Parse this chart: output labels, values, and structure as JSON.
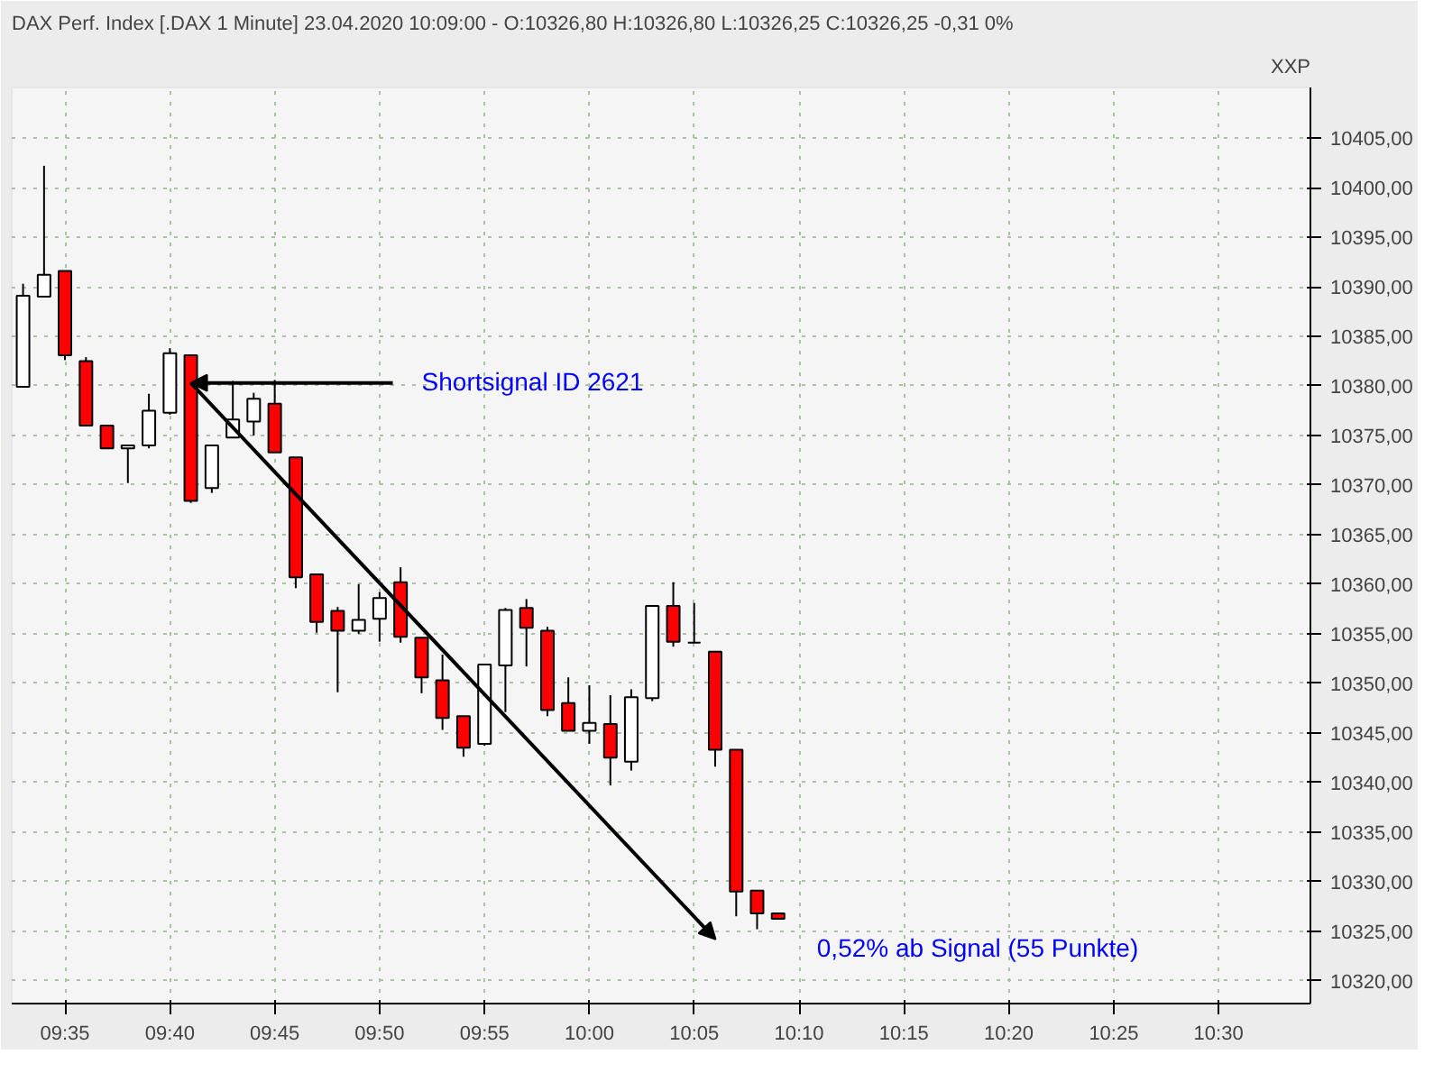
{
  "chart_data": {
    "type": "candlestick",
    "title": "DAX Perf. Index [.DAX  1 Minute] 23.04.2020 10:09:00 - O:10326,80 H:10326,80 L:10326,25 C:10326,25 -0,31 0%",
    "ylabel": "XXP",
    "x": [
      9.55,
      9.5667,
      9.5833,
      9.6,
      9.6167,
      9.6333,
      9.65,
      9.6667,
      9.6833,
      9.7,
      9.7167,
      9.7333,
      9.75,
      9.7667,
      9.7833,
      9.8,
      9.8167,
      9.8333,
      9.85,
      9.8667,
      9.8833,
      9.9,
      9.9167,
      9.9333,
      9.95,
      9.9667,
      9.9833,
      10.0,
      10.0167,
      10.0333,
      10.05,
      10.0667,
      10.0833,
      10.1,
      10.1167,
      10.1333,
      10.15
    ],
    "ohlc": [
      [
        10379.9,
        10390.3,
        10379.9,
        10389.1
      ],
      [
        10389.0,
        10402.2,
        10389.0,
        10391.2
      ],
      [
        10391.6,
        10391.6,
        10382.6,
        10383.1
      ],
      [
        10382.5,
        10382.9,
        10376.0,
        10376.0
      ],
      [
        10376.0,
        10376.0,
        10373.7,
        10373.7
      ],
      [
        10373.7,
        10374.0,
        10370.2,
        10374.0
      ],
      [
        10374.0,
        10379.2,
        10373.7,
        10377.5
      ],
      [
        10377.3,
        10383.8,
        10377.1,
        10383.3
      ],
      [
        10383.1,
        10383.1,
        10368.2,
        10368.4
      ],
      [
        10369.7,
        10374.0,
        10369.2,
        10374.0
      ],
      [
        10374.8,
        10380.5,
        10374.8,
        10376.6
      ],
      [
        10376.4,
        10379.3,
        10375.0,
        10378.7
      ],
      [
        10378.2,
        10380.6,
        10373.3,
        10373.3
      ],
      [
        10372.8,
        10372.8,
        10359.6,
        10360.7
      ],
      [
        10361.0,
        10361.0,
        10355.1,
        10356.2
      ],
      [
        10357.3,
        10357.7,
        10349.1,
        10355.3
      ],
      [
        10355.3,
        10360.0,
        10355.0,
        10356.4
      ],
      [
        10356.5,
        10359.2,
        10354.2,
        10358.6
      ],
      [
        10360.2,
        10361.7,
        10354.1,
        10354.7
      ],
      [
        10354.6,
        10354.6,
        10349.0,
        10350.6
      ],
      [
        10350.3,
        10352.9,
        10345.3,
        10346.5
      ],
      [
        10346.7,
        10346.7,
        10342.6,
        10343.5
      ],
      [
        10343.9,
        10351.9,
        10343.7,
        10351.9
      ],
      [
        10351.8,
        10357.6,
        10347.1,
        10357.4
      ],
      [
        10357.6,
        10358.5,
        10351.7,
        10355.6
      ],
      [
        10355.3,
        10355.7,
        10346.7,
        10347.3
      ],
      [
        10348.0,
        10350.6,
        10345.2,
        10345.2
      ],
      [
        10345.2,
        10349.8,
        10343.9,
        10346.0
      ],
      [
        10345.9,
        10348.8,
        10339.7,
        10342.5
      ],
      [
        10342.1,
        10349.4,
        10341.2,
        10348.6
      ],
      [
        10348.5,
        10357.8,
        10348.2,
        10357.8
      ],
      [
        10357.8,
        10360.2,
        10353.7,
        10354.2
      ],
      [
        10354.1,
        10358.1,
        10354.1,
        10354.1
      ],
      [
        10353.2,
        10353.2,
        10341.6,
        10343.3
      ],
      [
        10343.3,
        10343.3,
        10326.5,
        10329.0
      ],
      [
        10329.1,
        10329.1,
        10325.2,
        10326.8
      ],
      [
        10326.8,
        10326.8,
        10326.25,
        10326.25
      ]
    ],
    "colors": [
      "#ffffff",
      "#ffffff",
      "#ff0000",
      "#ff0000",
      "#ff0000",
      "#ffffff",
      "#ffffff",
      "#ffffff",
      "#ff0000",
      "#ffffff",
      "#ffffff",
      "#ffffff",
      "#ff0000",
      "#ff0000",
      "#ff0000",
      "#ff0000",
      "#ffffff",
      "#ffffff",
      "#ff0000",
      "#ff0000",
      "#ff0000",
      "#ff0000",
      "#ffffff",
      "#ffffff",
      "#ff0000",
      "#ff0000",
      "#ff0000",
      "#ffffff",
      "#ff0000",
      "#ffffff",
      "#ffffff",
      "#ff0000",
      "#000000",
      "#ff0000",
      "#ff0000",
      "#ff0000",
      "#ff0000"
    ],
    "xlim": [
      9.541,
      10.573
    ],
    "ylim": [
      10317.7,
      10410.1
    ],
    "xticks": [
      {
        "value": 9.5833,
        "label": "09:35"
      },
      {
        "value": 9.6667,
        "label": "09:40"
      },
      {
        "value": 9.75,
        "label": "09:45"
      },
      {
        "value": 9.8333,
        "label": "09:50"
      },
      {
        "value": 9.9167,
        "label": "09:55"
      },
      {
        "value": 10.0,
        "label": "10:00"
      },
      {
        "value": 10.0833,
        "label": "10:05"
      },
      {
        "value": 10.1667,
        "label": "10:10"
      },
      {
        "value": 10.25,
        "label": "10:15"
      },
      {
        "value": 10.3333,
        "label": "10:20"
      },
      {
        "value": 10.4167,
        "label": "10:25"
      },
      {
        "value": 10.5,
        "label": "10:30"
      }
    ],
    "yticks": [
      {
        "value": 10320,
        "label": "10320,00"
      },
      {
        "value": 10325,
        "label": "10325,00"
      },
      {
        "value": 10330,
        "label": "10330,00"
      },
      {
        "value": 10335,
        "label": "10335,00"
      },
      {
        "value": 10340,
        "label": "10340,00"
      },
      {
        "value": 10345,
        "label": "10345,00"
      },
      {
        "value": 10350,
        "label": "10350,00"
      },
      {
        "value": 10355,
        "label": "10355,00"
      },
      {
        "value": 10360,
        "label": "10360,00"
      },
      {
        "value": 10365,
        "label": "10365,00"
      },
      {
        "value": 10370,
        "label": "10370,00"
      },
      {
        "value": 10375,
        "label": "10375,00"
      },
      {
        "value": 10380,
        "label": "10380,00"
      },
      {
        "value": 10385,
        "label": "10385,00"
      },
      {
        "value": 10390,
        "label": "10390,00"
      },
      {
        "value": 10395,
        "label": "10395,00"
      },
      {
        "value": 10400,
        "label": "10400,00"
      },
      {
        "value": 10405,
        "label": "10405,00"
      }
    ],
    "grid": true,
    "annotations": [
      {
        "text": "Shortsignal ID 2621",
        "x": 9.6833,
        "y": 10380.3
      },
      "0,52% ab Signal (55 Punkte)"
    ]
  }
}
